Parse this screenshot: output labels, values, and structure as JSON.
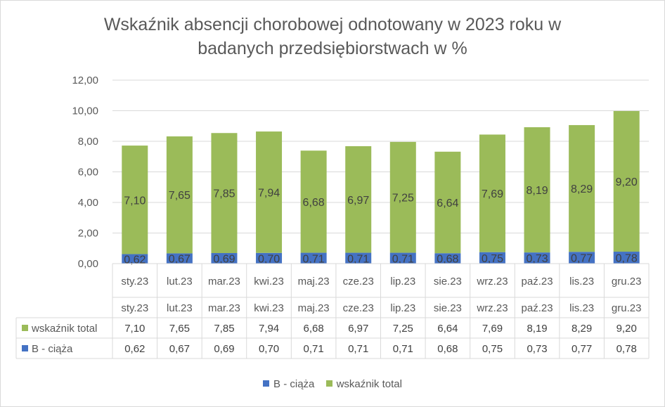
{
  "chart_data": {
    "type": "bar",
    "stacked": true,
    "title_lines": [
      "Wskaźnik absencji chorobowej odnotowany w 2023 roku w",
      "badanych przedsiębiorstwach  w %"
    ],
    "categories": [
      "sty.23",
      "lut.23",
      "mar.23",
      "kwi.23",
      "maj.23",
      "cze.23",
      "lip.23",
      "sie.23",
      "wrz.23",
      "paź.23",
      "lis.23",
      "gru.23"
    ],
    "series": [
      {
        "name": "B - ciąża",
        "color": "#4472c4",
        "values": [
          0.62,
          0.67,
          0.69,
          0.7,
          0.71,
          0.71,
          0.71,
          0.68,
          0.75,
          0.73,
          0.77,
          0.78
        ],
        "labels": [
          "0,62",
          "0,67",
          "0,69",
          "0,70",
          "0,71",
          "0,71",
          "0,71",
          "0,68",
          "0,75",
          "0,73",
          "0,77",
          "0,78"
        ]
      },
      {
        "name": "wskaźnik total",
        "color": "#9bbb59",
        "values": [
          7.1,
          7.65,
          7.85,
          7.94,
          6.68,
          6.97,
          7.25,
          6.64,
          7.69,
          8.19,
          8.29,
          9.2
        ],
        "labels": [
          "7,10",
          "7,65",
          "7,85",
          "7,94",
          "6,68",
          "6,97",
          "7,25",
          "6,64",
          "7,69",
          "8,19",
          "8,29",
          "9,20"
        ]
      }
    ],
    "ylim": [
      0,
      12
    ],
    "yticks": [
      0,
      2,
      4,
      6,
      8,
      10,
      12
    ],
    "ytick_labels": [
      "0,00",
      "2,00",
      "4,00",
      "6,00",
      "8,00",
      "10,00",
      "12,00"
    ],
    "grid": true,
    "legend_position": "bottom",
    "data_table": {
      "header": [
        "sty.23",
        "lut.23",
        "mar.23",
        "kwi.23",
        "maj.23",
        "cze.23",
        "lip.23",
        "sie.23",
        "wrz.23",
        "paź.23",
        "lis.23",
        "gru.23"
      ],
      "rows": [
        {
          "name": "wskaźnik total",
          "color": "#9bbb59",
          "cells": [
            "7,10",
            "7,65",
            "7,85",
            "7,94",
            "6,68",
            "6,97",
            "7,25",
            "6,64",
            "7,69",
            "8,19",
            "8,29",
            "9,20"
          ]
        },
        {
          "name": "B - ciąża",
          "color": "#4472c4",
          "cells": [
            "0,62",
            "0,67",
            "0,69",
            "0,70",
            "0,71",
            "0,71",
            "0,71",
            "0,68",
            "0,75",
            "0,73",
            "0,77",
            "0,78"
          ]
        }
      ]
    },
    "legend": [
      {
        "name": "B - ciąża",
        "color": "#4472c4"
      },
      {
        "name": "wskaźnik total",
        "color": "#9bbb59"
      }
    ]
  }
}
